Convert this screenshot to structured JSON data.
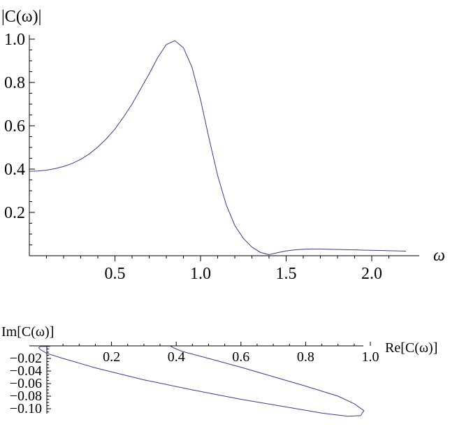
{
  "colors": {
    "series": "#3b3b8e",
    "axis": "#000000",
    "background": "#ffffff"
  },
  "chart_data": [
    {
      "type": "line",
      "title": "",
      "xlabel": "ω",
      "ylabel": "|C(ω)|",
      "xlim": [
        0.0,
        2.2
      ],
      "ylim": [
        0.0,
        1.0
      ],
      "x_ticks": [
        {
          "value": 0.5,
          "label": "0.5"
        },
        {
          "value": 1.0,
          "label": "1.0"
        },
        {
          "value": 1.5,
          "label": "1.5"
        },
        {
          "value": 2.0,
          "label": "2.0"
        }
      ],
      "y_ticks": [
        {
          "value": 0.2,
          "label": "0.2"
        },
        {
          "value": 0.4,
          "label": "0.4"
        },
        {
          "value": 0.6,
          "label": "0.6"
        },
        {
          "value": 0.8,
          "label": "0.8"
        },
        {
          "value": 1.0,
          "label": "1.0"
        }
      ],
      "grid": false,
      "legend": "none",
      "series": [
        {
          "x": [
            0.0,
            0.05,
            0.1,
            0.15,
            0.2,
            0.25,
            0.3,
            0.35,
            0.4,
            0.45,
            0.5,
            0.55,
            0.6,
            0.65,
            0.7,
            0.75,
            0.8,
            0.85,
            0.9,
            0.95,
            1.0,
            1.05,
            1.1,
            1.15,
            1.2,
            1.25,
            1.3,
            1.35,
            1.4,
            1.45,
            1.5,
            1.55,
            1.6,
            1.65,
            1.7,
            1.75,
            1.8,
            1.85,
            1.9,
            1.95,
            2.0,
            2.05,
            2.1,
            2.15,
            2.2
          ],
          "y": [
            0.39,
            0.391,
            0.395,
            0.402,
            0.412,
            0.426,
            0.445,
            0.47,
            0.502,
            0.54,
            0.585,
            0.64,
            0.7,
            0.77,
            0.84,
            0.915,
            0.975,
            0.993,
            0.96,
            0.87,
            0.72,
            0.54,
            0.37,
            0.235,
            0.14,
            0.08,
            0.04,
            0.015,
            0.005,
            0.014,
            0.022,
            0.027,
            0.03,
            0.031,
            0.031,
            0.03,
            0.029,
            0.028,
            0.027,
            0.026,
            0.025,
            0.024,
            0.023,
            0.022,
            0.021
          ]
        }
      ]
    },
    {
      "type": "line",
      "title": "",
      "xlabel": "Re[C(ω)]",
      "ylabel": "Im[C(ω)]",
      "xlim": [
        -0.03,
        1.0
      ],
      "ylim": [
        -0.11,
        0.0
      ],
      "x_ticks": [
        {
          "value": 0.2,
          "label": "0.2"
        },
        {
          "value": 0.4,
          "label": "0.4"
        },
        {
          "value": 0.6,
          "label": "0.6"
        },
        {
          "value": 0.8,
          "label": "0.8"
        },
        {
          "value": 1.0,
          "label": "1.0"
        }
      ],
      "y_ticks": [
        {
          "value": -0.02,
          "label": "−0.02"
        },
        {
          "value": -0.04,
          "label": "−0.04"
        },
        {
          "value": -0.06,
          "label": "−0.06"
        },
        {
          "value": -0.08,
          "label": "−0.08"
        },
        {
          "value": -0.1,
          "label": "−0.10"
        }
      ],
      "grid": false,
      "legend": "none",
      "series": [
        {
          "x": [
            0.38,
            0.4,
            0.42,
            0.5,
            0.6,
            0.7,
            0.8,
            0.9,
            0.95,
            0.98,
            0.97,
            0.93,
            0.85,
            0.75,
            0.6,
            0.45,
            0.3,
            0.15,
            0.05,
            0.0,
            -0.02,
            -0.025,
            -0.02,
            0.0,
            0.01
          ],
          "y": [
            0.0,
            -0.005,
            -0.009,
            -0.02,
            -0.034,
            -0.049,
            -0.064,
            -0.08,
            -0.092,
            -0.103,
            -0.111,
            -0.112,
            -0.107,
            -0.098,
            -0.085,
            -0.07,
            -0.054,
            -0.035,
            -0.02,
            -0.012,
            -0.006,
            -0.003,
            -0.001,
            -0.001,
            -0.001
          ]
        }
      ]
    }
  ]
}
